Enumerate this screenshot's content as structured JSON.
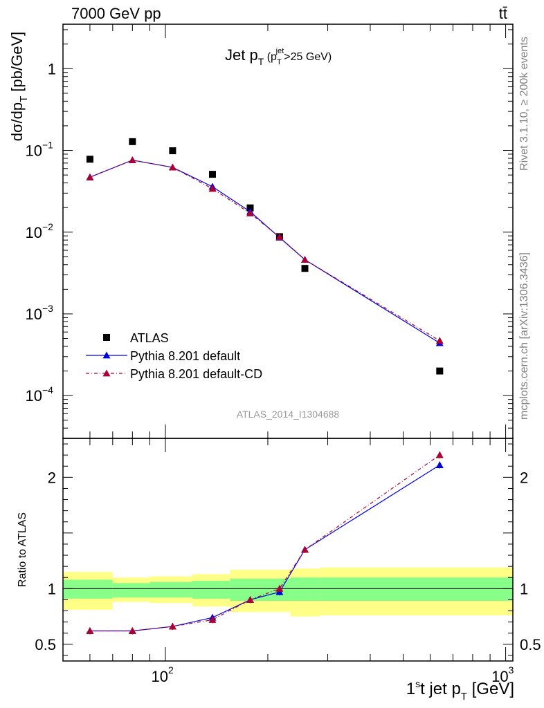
{
  "header": {
    "energy_label": "7000 GeV pp",
    "process_label": "tt̄",
    "rivet_label": "Rivet 3.1.10, ≥ 200k events",
    "mcplots_label": "mcplots.cern.ch [arXiv:1306.3436]",
    "analysis_id": "ATLAS_2014_I1304688"
  },
  "chart_data": [
    {
      "type": "scatter",
      "panel": "main",
      "title": "Jet pT (pTjet>25 GeV)",
      "title_parts": {
        "main": "Jet p",
        "main_sub": "T",
        "cond_open": " (p",
        "cond_sub": "T",
        "cond_sup": "jet",
        "cond_rest": ">25 GeV)"
      },
      "ylabel": "dσ/dp_T [pb/GeV]",
      "ylabel_parts": {
        "main": "dσ/dp",
        "sub": "T",
        "unit": " [pb/GeV]"
      },
      "xscale": "log",
      "yscale": "log",
      "xlim": [
        50,
        1050
      ],
      "ylim": [
        3e-05,
        3.5
      ],
      "x_ticklabels": [],
      "y_ticks": [
        {
          "value": 1,
          "label": "1"
        },
        {
          "value": 0.1,
          "base": "10",
          "exp": "−1"
        },
        {
          "value": 0.01,
          "base": "10",
          "exp": "−2"
        },
        {
          "value": 0.001,
          "base": "10",
          "exp": "−3"
        },
        {
          "value": 0.0001,
          "base": "10",
          "exp": "−4"
        }
      ],
      "legend_position": "bottom-left",
      "series": [
        {
          "name": "ATLAS",
          "color": "#000000",
          "marker": "square",
          "line": "none",
          "x": [
            60,
            80,
            105,
            137.5,
            177.5,
            216.5,
            257,
            640
          ],
          "y": [
            0.078,
            0.128,
            0.099,
            0.051,
            0.0198,
            0.0088,
            0.0036,
            0.0002
          ]
        },
        {
          "name": "Pythia 8.201 default",
          "color": "#0000dd",
          "marker": "triangle",
          "line": "solid",
          "x": [
            60,
            80,
            105,
            137.5,
            177.5,
            216.5,
            257,
            640
          ],
          "y": [
            0.047,
            0.076,
            0.062,
            0.036,
            0.0178,
            0.0086,
            0.0046,
            0.00044
          ]
        },
        {
          "name": "Pythia 8.201 default-CD",
          "color": "#aa0033",
          "marker": "triangle",
          "line": "dashdot",
          "x": [
            60,
            80,
            105,
            137.5,
            177.5,
            216.5,
            257,
            640
          ],
          "y": [
            0.047,
            0.076,
            0.062,
            0.034,
            0.017,
            0.0087,
            0.0046,
            0.00047
          ]
        }
      ]
    },
    {
      "type": "scatter",
      "panel": "ratio",
      "ylabel": "Ratio to ATLAS",
      "xlabel": "1st jet pT [GeV]",
      "xlabel_parts": {
        "a": "1",
        "sup": "s",
        "b": "t jet p",
        "sub": "T",
        "unit": " [GeV]"
      },
      "xscale": "log",
      "yscale": "linear",
      "xlim": [
        50,
        1050
      ],
      "ylim": [
        0.35,
        2.35
      ],
      "x_ticks": [
        {
          "value": 100,
          "base": "10",
          "exp": "2"
        },
        {
          "value": 1000,
          "base": "10",
          "exp": "3"
        }
      ],
      "y_ticks": [
        {
          "value": 0.5,
          "label": "0.5"
        },
        {
          "value": 1,
          "label": "1"
        },
        {
          "value": 2,
          "label": "2"
        }
      ],
      "reference_line": 1,
      "bands": [
        {
          "x_low": 50,
          "x_high": 70,
          "yellow": [
            0.81,
            1.15
          ],
          "green": [
            0.91,
            1.08
          ]
        },
        {
          "x_low": 70,
          "x_high": 90,
          "yellow": [
            0.88,
            1.1
          ],
          "green": [
            0.92,
            1.05
          ]
        },
        {
          "x_low": 90,
          "x_high": 120,
          "yellow": [
            0.87,
            1.11
          ],
          "green": [
            0.92,
            1.06
          ]
        },
        {
          "x_low": 120,
          "x_high": 155,
          "yellow": [
            0.84,
            1.13
          ],
          "green": [
            0.91,
            1.07
          ]
        },
        {
          "x_low": 155,
          "x_high": 200,
          "yellow": [
            0.79,
            1.17
          ],
          "green": [
            0.89,
            1.09
          ]
        },
        {
          "x_low": 200,
          "x_high": 233,
          "yellow": [
            0.79,
            1.17
          ],
          "green": [
            0.89,
            1.09
          ]
        },
        {
          "x_low": 233,
          "x_high": 285,
          "yellow": [
            0.75,
            1.18
          ],
          "green": [
            0.89,
            1.1
          ]
        },
        {
          "x_low": 285,
          "x_high": 1050,
          "yellow": [
            0.76,
            1.19
          ],
          "green": [
            0.89,
            1.1
          ]
        }
      ],
      "band_colors": {
        "yellow": "#ffff88",
        "green": "#88ff88"
      },
      "series": [
        {
          "name": "Pythia 8.201 default",
          "color": "#0000dd",
          "line": "solid",
          "x": [
            60,
            80,
            105,
            137.5,
            177.5,
            216.5,
            257,
            640
          ],
          "y": [
            0.62,
            0.62,
            0.66,
            0.74,
            0.9,
            0.97,
            1.35,
            2.11
          ]
        },
        {
          "name": "Pythia 8.201 default-CD",
          "color": "#aa0033",
          "line": "dashdot",
          "x": [
            60,
            80,
            105,
            137.5,
            177.5,
            216.5,
            257,
            640
          ],
          "y": [
            0.62,
            0.62,
            0.66,
            0.72,
            0.9,
            1.0,
            1.35,
            2.2
          ]
        }
      ]
    }
  ]
}
